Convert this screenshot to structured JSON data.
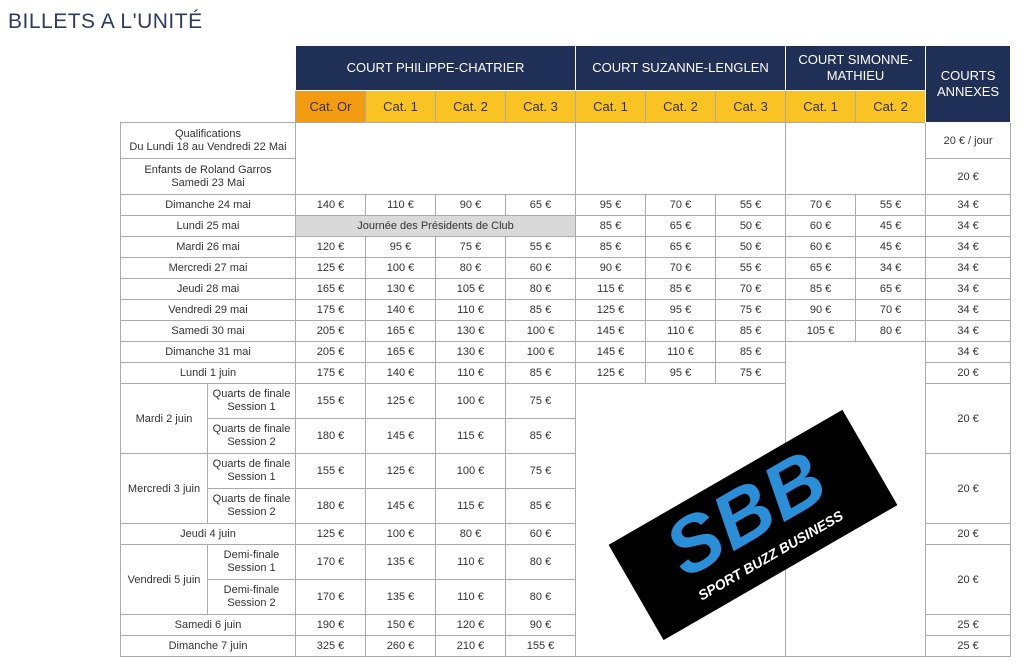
{
  "title": "BILLETS A L'UNITÉ",
  "table": {
    "courts": [
      {
        "name": "COURT PHILIPPE-CHATRIER",
        "categories": [
          "Cat. Or",
          "Cat. 1",
          "Cat. 2",
          "Cat. 3"
        ]
      },
      {
        "name": "COURT SUZANNE-LENGLEN",
        "categories": [
          "Cat. 1",
          "Cat. 2",
          "Cat. 3"
        ]
      },
      {
        "name": "COURT SIMONNE-MATHIEU",
        "categories": [
          "Cat. 1",
          "Cat. 2"
        ]
      }
    ],
    "annexes": "COURTS ANNEXES",
    "rows": [
      {
        "label": [
          "Qualifications",
          "Du Lundi 18 au Vendredi 22 Mai"
        ],
        "annexes": "20 € / jour"
      },
      {
        "label": [
          "Enfants de Roland Garros",
          "Samedi 23 Mai"
        ],
        "annexes": "20 €"
      },
      {
        "date": "Dimanche 24 mai",
        "prices": [
          "140 €",
          "110 €",
          "90 €",
          "65 €",
          "95 €",
          "70 €",
          "55 €",
          "70 €",
          "55 €"
        ],
        "annexes": "34 €"
      },
      {
        "date": "Lundi 25 mai",
        "note": "Journée des Présidents de Club",
        "prices": [
          "85 €",
          "65 €",
          "50 €",
          "60 €",
          "45 €"
        ],
        "annexes": "34 €"
      },
      {
        "date": "Mardi 26 mai",
        "prices": [
          "120 €",
          "95 €",
          "75 €",
          "55 €",
          "85 €",
          "65 €",
          "50 €",
          "60 €",
          "45 €"
        ],
        "annexes": "34 €"
      },
      {
        "date": "Mercredi 27 mai",
        "prices": [
          "125 €",
          "100 €",
          "80 €",
          "60 €",
          "90 €",
          "70 €",
          "55 €",
          "65 €",
          "34 €"
        ],
        "annexes": "34 €"
      },
      {
        "date": "Jeudi 28 mai",
        "prices": [
          "165 €",
          "130 €",
          "105 €",
          "80 €",
          "115 €",
          "85 €",
          "70 €",
          "85 €",
          "65 €"
        ],
        "annexes": "34 €"
      },
      {
        "date": "Vendredi 29 mai",
        "prices": [
          "175 €",
          "140 €",
          "110 €",
          "85 €",
          "125 €",
          "95 €",
          "75 €",
          "90 €",
          "70 €"
        ],
        "annexes": "34 €"
      },
      {
        "date": "Samedi 30 mai",
        "prices": [
          "205 €",
          "165 €",
          "130 €",
          "100 €",
          "145 €",
          "110 €",
          "85 €",
          "105 €",
          "80 €"
        ],
        "annexes": "34 €"
      },
      {
        "date": "Dimanche 31 mai",
        "prices": [
          "205 €",
          "165 €",
          "130 €",
          "100 €",
          "145 €",
          "110 €",
          "85 €"
        ],
        "annexes": "34 €"
      },
      {
        "date": "Lundi 1 juin",
        "prices": [
          "175 €",
          "140 €",
          "110 €",
          "85 €",
          "125 €",
          "95 €",
          "75 €"
        ],
        "annexes": "20 €"
      },
      {
        "date": "Mardi 2 juin",
        "annexes": "20 €",
        "sessions": [
          {
            "label": [
              "Quarts de finale",
              "Session 1"
            ],
            "prices": [
              "155 €",
              "125 €",
              "100 €",
              "75 €"
            ]
          },
          {
            "label": [
              "Quarts de finale",
              "Session 2"
            ],
            "prices": [
              "180 €",
              "145 €",
              "115 €",
              "85 €"
            ]
          }
        ]
      },
      {
        "date": "Mercredi 3 juin",
        "annexes": "20 €",
        "sessions": [
          {
            "label": [
              "Quarts de finale",
              "Session 1"
            ],
            "prices": [
              "155 €",
              "125 €",
              "100 €",
              "75 €"
            ]
          },
          {
            "label": [
              "Quarts de finale",
              "Session 2"
            ],
            "prices": [
              "180 €",
              "145 €",
              "115 €",
              "85 €"
            ]
          }
        ]
      },
      {
        "date": "Jeudi 4 juin",
        "prices": [
          "125 €",
          "100 €",
          "80 €",
          "60 €"
        ],
        "annexes": "20 €"
      },
      {
        "date": "Vendredi 5 juin",
        "annexes": "20 €",
        "sessions": [
          {
            "label": [
              "Demi-finale",
              "Session 1"
            ],
            "prices": [
              "170 €",
              "135 €",
              "110 €",
              "80 €"
            ]
          },
          {
            "label": [
              "Demi-finale",
              "Session 2"
            ],
            "prices": [
              "170 €",
              "135 €",
              "110 €",
              "80 €"
            ]
          }
        ]
      },
      {
        "date": "Samedi 6 juin",
        "prices": [
          "190 €",
          "150 €",
          "120 €",
          "90 €"
        ],
        "annexes": "25 €"
      },
      {
        "date": "Dimanche 7 juin",
        "prices": [
          "325 €",
          "260 €",
          "210 €",
          "155 €"
        ],
        "annexes": "25 €"
      }
    ]
  },
  "logo": {
    "letters": "SBB",
    "tagline": "SPORT BUZZ BUSINESS"
  }
}
